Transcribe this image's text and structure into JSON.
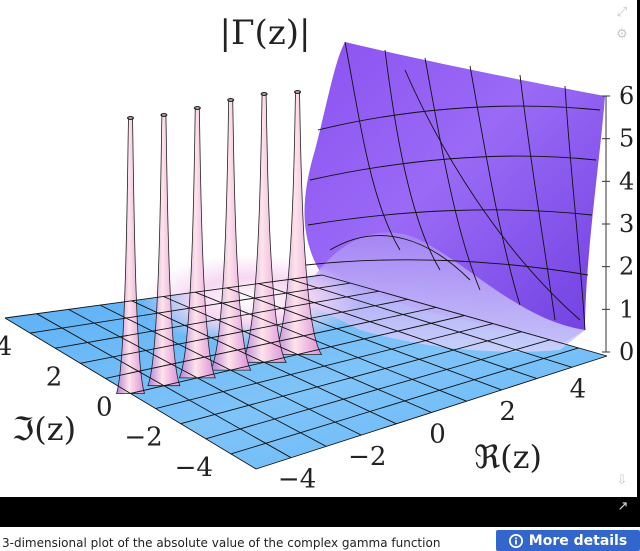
{
  "viewer": {
    "caption": "3-dimensional plot of the absolute value of the complex gamma function",
    "more_details_label": "More details",
    "icons": [
      "zoom-icon",
      "settings-icon",
      "download-icon",
      "share-icon",
      "info-icon"
    ]
  },
  "chart_data": {
    "type": "surface3d",
    "title": "|Γ(z)|",
    "xlabel": "ℜ(z)",
    "ylabel": "ℑ(z)",
    "zlabel": "",
    "x_ticks": [
      "−4",
      "−2",
      "0",
      "2",
      "4"
    ],
    "y_ticks": [
      "−4",
      "−2",
      "0",
      "2",
      "4"
    ],
    "z_ticks": [
      "0",
      "1",
      "2",
      "3",
      "4",
      "5",
      "6"
    ],
    "xlim": [
      -5,
      5
    ],
    "ylim": [
      -5,
      5
    ],
    "zlim": [
      0,
      6
    ],
    "poles_at_real": [
      0,
      -1,
      -2,
      -3,
      -4,
      -5
    ],
    "colors": {
      "low": "#5fb3f5",
      "mid": "#ffd6f0",
      "high": "#7d3be8",
      "grid": "#111111"
    }
  }
}
